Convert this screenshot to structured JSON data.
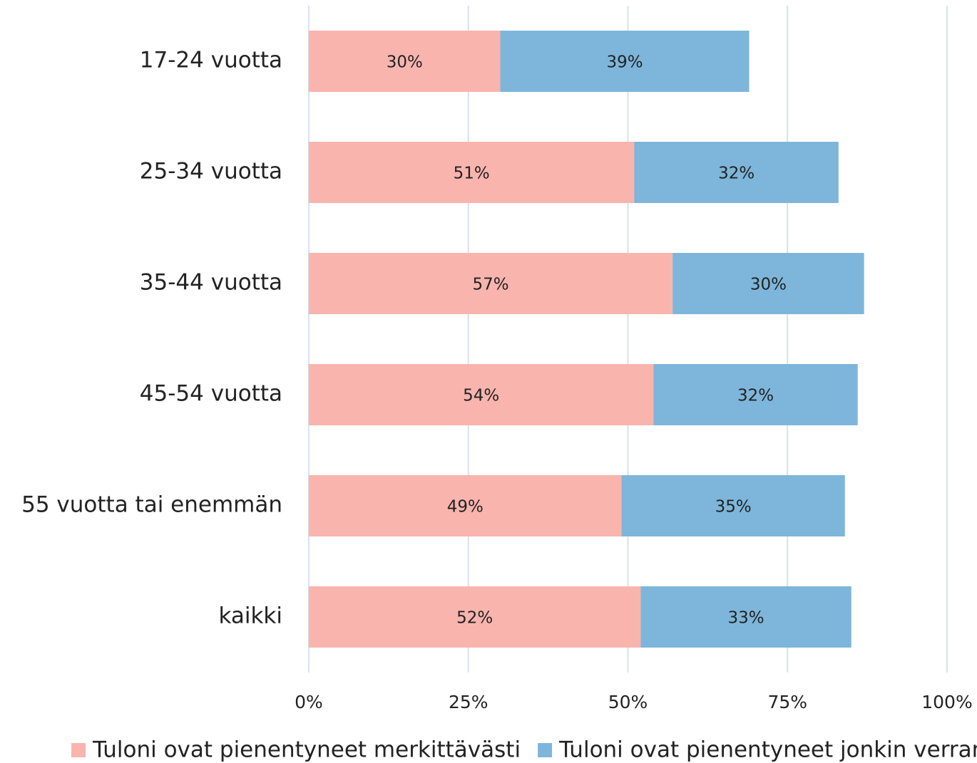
{
  "chart_data": {
    "type": "stacked_barh",
    "categories": [
      "17-24 vuotta",
      "25-34 vuotta",
      "35-44 vuotta",
      "45-54 vuotta",
      "55 vuotta tai enemmän",
      "kaikki"
    ],
    "series": [
      {
        "name": "Tuloni ovat pienentyneet merkittävästi",
        "color": "#f9b4ae",
        "values": [
          30,
          51,
          57,
          54,
          49,
          52
        ],
        "value_labels": [
          "30%",
          "51%",
          "57%",
          "54%",
          "49%",
          "52%"
        ]
      },
      {
        "name": "Tuloni ovat pienentyneet jonkin verran",
        "color": "#7db6da",
        "values": [
          39,
          32,
          30,
          32,
          35,
          33
        ],
        "value_labels": [
          "39%",
          "32%",
          "30%",
          "32%",
          "35%",
          "33%"
        ]
      }
    ],
    "xlim": [
      0,
      100
    ],
    "xticks": [
      {
        "value": 0,
        "label": "0%"
      },
      {
        "value": 25,
        "label": "25%"
      },
      {
        "value": 50,
        "label": "50%"
      },
      {
        "value": 75,
        "label": "75%"
      },
      {
        "value": 100,
        "label": "100%"
      }
    ],
    "grid": true,
    "legend": "bottom"
  }
}
